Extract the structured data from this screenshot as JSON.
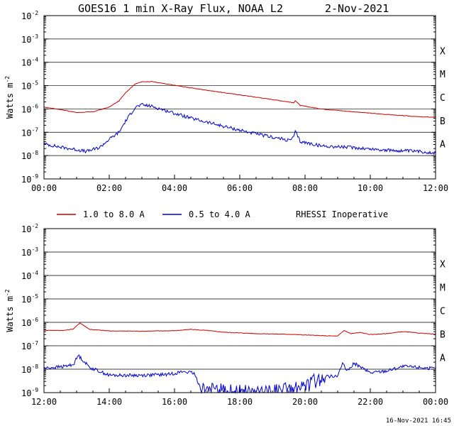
{
  "title": "GOES16 1 min X-Ray Flux, NOAA L2",
  "date": "2-Nov-2021",
  "footer": "16-Nov-2021 16:45",
  "legend": [
    {
      "label": "1.0 to 8.0 A",
      "color": "#cc0000"
    },
    {
      "label": "0.5 to 4.0 A",
      "color": "#0000cc"
    }
  ],
  "status_note": "RHESSI Inoperative",
  "chart_data": [
    {
      "type": "line",
      "ylabel": "Watts m",
      "ylabel_exp": "-2",
      "yscale": "log",
      "ylim": [
        1e-09,
        0.01
      ],
      "y_ticks": [
        {
          "base": "10",
          "exp": "-2"
        },
        {
          "base": "10",
          "exp": "-3"
        },
        {
          "base": "10",
          "exp": "-4"
        },
        {
          "base": "10",
          "exp": "-5"
        },
        {
          "base": "10",
          "exp": "-6"
        },
        {
          "base": "10",
          "exp": "-7"
        },
        {
          "base": "10",
          "exp": "-8"
        },
        {
          "base": "10",
          "exp": "-9"
        }
      ],
      "x_ticks": [
        "00:00",
        "02:00",
        "04:00",
        "06:00",
        "08:00",
        "10:00",
        "12:00"
      ],
      "xlim_hours": [
        0,
        12
      ],
      "flare_classes": [
        {
          "label": "X",
          "flux": 0.0001
        },
        {
          "label": "M",
          "flux": 1e-05
        },
        {
          "label": "C",
          "flux": 1e-06
        },
        {
          "label": "B",
          "flux": 1e-07
        },
        {
          "label": "A",
          "flux": 1e-08
        }
      ],
      "grid": true,
      "series": [
        {
          "name": "1.0 to 8.0 A",
          "color": "#cc0000",
          "points": [
            [
              0,
              1.2e-06
            ],
            [
              0.5,
              9.5e-07
            ],
            [
              1.0,
              7e-07
            ],
            [
              1.5,
              7.5e-07
            ],
            [
              2.0,
              1.2e-06
            ],
            [
              2.3,
              2.2e-06
            ],
            [
              2.5,
              5e-06
            ],
            [
              2.8,
              1.2e-05
            ],
            [
              3.0,
              1.45e-05
            ],
            [
              3.3,
              1.5e-05
            ],
            [
              3.7,
              1.2e-05
            ],
            [
              4.5,
              8e-06
            ],
            [
              5.5,
              5e-06
            ],
            [
              6.5,
              3.2e-06
            ],
            [
              7.5,
              2e-06
            ],
            [
              7.65,
              1.8e-06
            ],
            [
              7.7,
              2.3e-06
            ],
            [
              7.85,
              1.4e-06
            ],
            [
              8.5,
              1e-06
            ],
            [
              9.5,
              7.5e-07
            ],
            [
              10.5,
              5.8e-07
            ],
            [
              11.5,
              4.6e-07
            ],
            [
              12,
              4.4e-07
            ]
          ]
        },
        {
          "name": "0.5 to 4.0 A",
          "color": "#0000cc",
          "points": [
            [
              0,
              3.2e-08
            ],
            [
              0.5,
              2.3e-08
            ],
            [
              1.0,
              1.8e-08
            ],
            [
              1.3,
              1.5e-08
            ],
            [
              1.7,
              2.2e-08
            ],
            [
              2.0,
              5e-08
            ],
            [
              2.3,
              1e-07
            ],
            [
              2.5,
              3e-07
            ],
            [
              2.8,
              1.2e-06
            ],
            [
              3.0,
              1.5e-06
            ],
            [
              3.3,
              1.3e-06
            ],
            [
              3.8,
              8e-07
            ],
            [
              4.5,
              4e-07
            ],
            [
              5.5,
              1.8e-07
            ],
            [
              6.5,
              8.5e-08
            ],
            [
              7.5,
              4.5e-08
            ],
            [
              7.65,
              6e-08
            ],
            [
              7.7,
              1.1e-07
            ],
            [
              7.85,
              4e-08
            ],
            [
              8.5,
              2.6e-08
            ],
            [
              9.5,
              2.2e-08
            ],
            [
              10.5,
              1.7e-08
            ],
            [
              11.5,
              1.5e-08
            ],
            [
              12,
              1.3e-08
            ]
          ]
        }
      ]
    },
    {
      "type": "line",
      "ylabel": "Watts m",
      "ylabel_exp": "-2",
      "yscale": "log",
      "ylim": [
        1e-09,
        0.01
      ],
      "y_ticks": [
        {
          "base": "10",
          "exp": "-2"
        },
        {
          "base": "10",
          "exp": "-3"
        },
        {
          "base": "10",
          "exp": "-4"
        },
        {
          "base": "10",
          "exp": "-5"
        },
        {
          "base": "10",
          "exp": "-6"
        },
        {
          "base": "10",
          "exp": "-7"
        },
        {
          "base": "10",
          "exp": "-8"
        },
        {
          "base": "10",
          "exp": "-9"
        }
      ],
      "x_ticks": [
        "12:00",
        "14:00",
        "16:00",
        "18:00",
        "20:00",
        "22:00",
        "00:00"
      ],
      "xlim_hours": [
        12,
        24
      ],
      "flare_classes": [
        {
          "label": "X",
          "flux": 0.0001
        },
        {
          "label": "M",
          "flux": 1e-05
        },
        {
          "label": "C",
          "flux": 1e-06
        },
        {
          "label": "B",
          "flux": 1e-07
        },
        {
          "label": "A",
          "flux": 1e-08
        }
      ],
      "grid": true,
      "series": [
        {
          "name": "1.0 to 8.0 A",
          "color": "#cc0000",
          "points": [
            [
              12.0,
              4.6e-07
            ],
            [
              12.6,
              4.5e-07
            ],
            [
              12.9,
              5.2e-07
            ],
            [
              13.1,
              9.5e-07
            ],
            [
              13.4,
              5e-07
            ],
            [
              14.0,
              4.3e-07
            ],
            [
              15.0,
              4.2e-07
            ],
            [
              16.0,
              4.4e-07
            ],
            [
              16.5,
              5e-07
            ],
            [
              17.0,
              4.5e-07
            ],
            [
              17.5,
              3.8e-07
            ],
            [
              18.5,
              3.3e-07
            ],
            [
              19.5,
              3.1e-07
            ],
            [
              20.5,
              2.7e-07
            ],
            [
              21.0,
              2.6e-07
            ],
            [
              21.2,
              4.5e-07
            ],
            [
              21.4,
              3.3e-07
            ],
            [
              21.7,
              3.7e-07
            ],
            [
              22.0,
              3e-07
            ],
            [
              22.5,
              3.3e-07
            ],
            [
              23.0,
              4e-07
            ],
            [
              23.5,
              3.5e-07
            ],
            [
              24,
              3.1e-07
            ]
          ]
        },
        {
          "name": "0.5 to 4.0 A",
          "color": "#0000cc",
          "points": [
            [
              12.0,
              1.1e-08
            ],
            [
              12.6,
              1.3e-08
            ],
            [
              12.9,
              1.6e-08
            ],
            [
              13.05,
              3.9e-08
            ],
            [
              13.4,
              1.2e-08
            ],
            [
              14.0,
              5.5e-09
            ],
            [
              15.0,
              5.5e-09
            ],
            [
              15.8,
              6e-09
            ],
            [
              16.3,
              8e-09
            ],
            [
              16.6,
              6.5e-09
            ],
            [
              16.8,
              1.6e-09
            ],
            [
              17.3,
              1.2e-09
            ],
            [
              18.0,
              1.1e-09
            ],
            [
              18.5,
              1e-09
            ],
            [
              19.0,
              1e-09
            ],
            [
              19.5,
              1.5e-09
            ],
            [
              20.0,
              1.7e-09
            ],
            [
              20.5,
              4.5e-09
            ],
            [
              21.0,
              5.5e-09
            ],
            [
              21.15,
              1.7e-08
            ],
            [
              21.3,
              8e-09
            ],
            [
              21.5,
              1.8e-08
            ],
            [
              22.0,
              7e-09
            ],
            [
              22.5,
              8.5e-09
            ],
            [
              23.0,
              1.3e-08
            ],
            [
              23.5,
              1.2e-08
            ],
            [
              24,
              1.05e-08
            ]
          ]
        }
      ]
    }
  ]
}
